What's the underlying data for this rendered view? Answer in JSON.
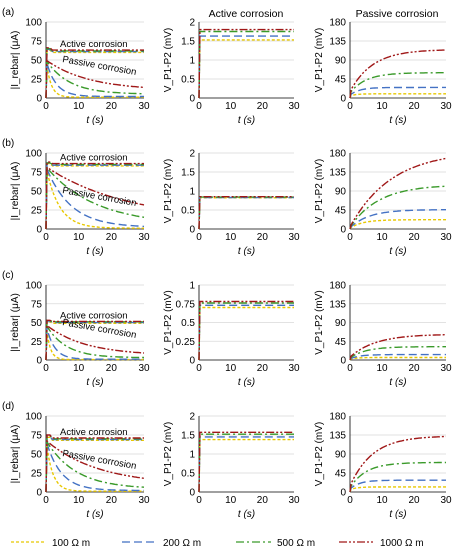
{
  "column_titles": [
    "",
    "Active corrosion",
    "Passive corrosion"
  ],
  "row_labels": [
    "(a)",
    "(b)",
    "(c)",
    "(d)"
  ],
  "axis_labels": {
    "x": "t (s)",
    "current_y": "|I_rebar| (μA)",
    "voltage_y": "V_P1-P2 (mV)"
  },
  "annotations": {
    "active": "Active corrosion",
    "passive": "Passive corrosion"
  },
  "legend": [
    {
      "label": "100 Ω m",
      "color": "#e8c800",
      "dash": "3,2"
    },
    {
      "label": "200 Ω m",
      "color": "#4472c4",
      "dash": "8,4"
    },
    {
      "label": "500 Ω m",
      "color": "#3a9a2a",
      "dash": "8,3,2,3"
    },
    {
      "label": "1000 Ω m",
      "color": "#a01818",
      "dash": "8,2,2,2,2,2"
    }
  ],
  "chart_data": [
    {
      "type": "line",
      "row": "(a)",
      "panel": "current",
      "xlim": [
        0,
        30
      ],
      "ylim": [
        0,
        100
      ],
      "xticks": [
        0,
        10,
        20,
        30
      ],
      "yticks": [
        0,
        25,
        50,
        75,
        100
      ],
      "series": [
        {
          "name": "100 Ω m",
          "kind": "passive",
          "params": {
            "peak": 50,
            "tau": 1.5,
            "final": 1
          }
        },
        {
          "name": "200 Ω m",
          "kind": "passive",
          "params": {
            "peak": 50,
            "tau": 3,
            "final": 2
          }
        },
        {
          "name": "500 Ω m",
          "kind": "passive",
          "params": {
            "peak": 50,
            "tau": 7,
            "final": 5
          }
        },
        {
          "name": "1000 Ω m",
          "kind": "passive",
          "params": {
            "peak": 50,
            "tau": 13,
            "final": 10
          }
        },
        {
          "name": "100 Ω m",
          "kind": "active",
          "params": {
            "level": 60,
            "peak": 63
          }
        },
        {
          "name": "200 Ω m",
          "kind": "active",
          "params": {
            "level": 61,
            "peak": 64
          }
        },
        {
          "name": "500 Ω m",
          "kind": "active",
          "params": {
            "level": 62,
            "peak": 65
          }
        },
        {
          "name": "1000 Ω m",
          "kind": "active",
          "params": {
            "level": 63,
            "peak": 66
          }
        }
      ]
    },
    {
      "type": "line",
      "row": "(a)",
      "panel": "active-voltage",
      "xlim": [
        0,
        30
      ],
      "ylim": [
        0,
        2
      ],
      "xticks": [
        0,
        10,
        20,
        30
      ],
      "yticks": [
        0,
        0.5,
        1,
        1.5,
        2
      ],
      "series": [
        {
          "name": "100 Ω m",
          "kind": "step",
          "params": {
            "level": 1.53
          }
        },
        {
          "name": "200 Ω m",
          "kind": "step",
          "params": {
            "level": 1.63
          }
        },
        {
          "name": "500 Ω m",
          "kind": "step",
          "params": {
            "level": 1.75
          }
        },
        {
          "name": "1000 Ω m",
          "kind": "step",
          "params": {
            "level": 1.8
          }
        }
      ]
    },
    {
      "type": "line",
      "row": "(a)",
      "panel": "passive-voltage",
      "xlim": [
        0,
        30
      ],
      "ylim": [
        0,
        180
      ],
      "xticks": [
        0,
        10,
        20,
        30
      ],
      "yticks": [
        0,
        45,
        90,
        135,
        180
      ],
      "series": [
        {
          "name": "100 Ω m",
          "kind": "rise",
          "params": {
            "v0": 5,
            "vinf": 10,
            "tau": 2
          }
        },
        {
          "name": "200 Ω m",
          "kind": "rise",
          "params": {
            "v0": 7,
            "vinf": 25,
            "tau": 3
          }
        },
        {
          "name": "500 Ω m",
          "kind": "rise",
          "params": {
            "v0": 12,
            "vinf": 60,
            "tau": 5
          }
        },
        {
          "name": "1000 Ω m",
          "kind": "rise",
          "params": {
            "v0": 15,
            "vinf": 115,
            "tau": 7
          }
        }
      ]
    },
    {
      "type": "line",
      "row": "(b)",
      "panel": "current",
      "xlim": [
        0,
        30
      ],
      "ylim": [
        0,
        100
      ],
      "xticks": [
        0,
        10,
        20,
        30
      ],
      "yticks": [
        0,
        25,
        50,
        75,
        100
      ],
      "series": [
        {
          "name": "100 Ω m",
          "kind": "passive",
          "params": {
            "peak": 82,
            "tau": 4,
            "final": 1
          }
        },
        {
          "name": "200 Ω m",
          "kind": "passive",
          "params": {
            "peak": 82,
            "tau": 7.5,
            "final": 2
          }
        },
        {
          "name": "500 Ω m",
          "kind": "passive",
          "params": {
            "peak": 82,
            "tau": 15,
            "final": 5
          }
        },
        {
          "name": "1000 Ω m",
          "kind": "passive",
          "params": {
            "peak": 82,
            "tau": 25,
            "final": 10
          }
        },
        {
          "name": "100 Ω m",
          "kind": "active",
          "params": {
            "level": 83,
            "peak": 86
          }
        },
        {
          "name": "200 Ω m",
          "kind": "active",
          "params": {
            "level": 84,
            "peak": 87
          }
        },
        {
          "name": "500 Ω m",
          "kind": "active",
          "params": {
            "level": 85,
            "peak": 87
          }
        },
        {
          "name": "1000 Ω m",
          "kind": "active",
          "params": {
            "level": 86,
            "peak": 88
          }
        }
      ]
    },
    {
      "type": "line",
      "row": "(b)",
      "panel": "active-voltage",
      "xlim": [
        0,
        30
      ],
      "ylim": [
        0,
        2
      ],
      "xticks": [
        0,
        10,
        20,
        30
      ],
      "yticks": [
        0,
        0.5,
        1,
        1.5,
        2
      ],
      "series": [
        {
          "name": "100 Ω m",
          "kind": "step",
          "params": {
            "level": 0.82
          }
        },
        {
          "name": "200 Ω m",
          "kind": "step",
          "params": {
            "level": 0.83
          }
        },
        {
          "name": "500 Ω m",
          "kind": "step",
          "params": {
            "level": 0.84
          }
        },
        {
          "name": "1000 Ω m",
          "kind": "step",
          "params": {
            "level": 0.85
          }
        }
      ]
    },
    {
      "type": "line",
      "row": "(b)",
      "panel": "passive-voltage",
      "xlim": [
        0,
        30
      ],
      "ylim": [
        0,
        180
      ],
      "xticks": [
        0,
        10,
        20,
        30
      ],
      "yticks": [
        0,
        45,
        90,
        135,
        180
      ],
      "series": [
        {
          "name": "100 Ω m",
          "kind": "rise",
          "params": {
            "v0": 2,
            "vinf": 22,
            "tau": 4
          }
        },
        {
          "name": "200 Ω m",
          "kind": "rise",
          "params": {
            "v0": 3,
            "vinf": 46,
            "tau": 6
          }
        },
        {
          "name": "500 Ω m",
          "kind": "rise",
          "params": {
            "v0": 4,
            "vinf": 105,
            "tau": 9
          }
        },
        {
          "name": "1000 Ω m",
          "kind": "rise",
          "params": {
            "v0": 5,
            "vinf": 185,
            "tau": 13
          }
        }
      ]
    },
    {
      "type": "line",
      "row": "(c)",
      "panel": "current",
      "xlim": [
        0,
        30
      ],
      "ylim": [
        0,
        100
      ],
      "xticks": [
        0,
        10,
        20,
        30
      ],
      "yticks": [
        0,
        25,
        50,
        75,
        100
      ],
      "series": [
        {
          "name": "100 Ω m",
          "kind": "passive",
          "params": {
            "peak": 47,
            "tau": 1.2,
            "final": 0.5
          }
        },
        {
          "name": "200 Ω m",
          "kind": "passive",
          "params": {
            "peak": 47,
            "tau": 2.5,
            "final": 1
          }
        },
        {
          "name": "500 Ω m",
          "kind": "passive",
          "params": {
            "peak": 47,
            "tau": 6,
            "final": 3
          }
        },
        {
          "name": "1000 Ω m",
          "kind": "passive",
          "params": {
            "peak": 47,
            "tau": 12,
            "final": 6
          }
        },
        {
          "name": "100 Ω m",
          "kind": "active",
          "params": {
            "level": 49,
            "peak": 51
          }
        },
        {
          "name": "200 Ω m",
          "kind": "active",
          "params": {
            "level": 50,
            "peak": 52
          }
        },
        {
          "name": "500 Ω m",
          "kind": "active",
          "params": {
            "level": 51,
            "peak": 53
          }
        },
        {
          "name": "1000 Ω m",
          "kind": "active",
          "params": {
            "level": 51.5,
            "peak": 53
          }
        }
      ]
    },
    {
      "type": "line",
      "row": "(c)",
      "panel": "active-voltage",
      "xlim": [
        0,
        30
      ],
      "ylim": [
        0,
        1
      ],
      "xticks": [
        0,
        10,
        20,
        30
      ],
      "yticks": [
        0,
        0.25,
        0.5,
        0.75,
        1
      ],
      "series": [
        {
          "name": "100 Ω m",
          "kind": "step",
          "params": {
            "level": 0.7
          }
        },
        {
          "name": "200 Ω m",
          "kind": "step",
          "params": {
            "level": 0.73
          }
        },
        {
          "name": "500 Ω m",
          "kind": "step",
          "params": {
            "level": 0.76
          }
        },
        {
          "name": "1000 Ω m",
          "kind": "step",
          "params": {
            "level": 0.78
          }
        }
      ]
    },
    {
      "type": "line",
      "row": "(c)",
      "panel": "passive-voltage",
      "xlim": [
        0,
        30
      ],
      "ylim": [
        0,
        180
      ],
      "xticks": [
        0,
        10,
        20,
        30
      ],
      "yticks": [
        0,
        45,
        90,
        135,
        180
      ],
      "series": [
        {
          "name": "100 Ω m",
          "kind": "rise",
          "params": {
            "v0": 2,
            "vinf": 6,
            "tau": 2
          }
        },
        {
          "name": "200 Ω m",
          "kind": "rise",
          "params": {
            "v0": 3,
            "vinf": 13,
            "tau": 3
          }
        },
        {
          "name": "500 Ω m",
          "kind": "rise",
          "params": {
            "v0": 5,
            "vinf": 32,
            "tau": 5
          }
        },
        {
          "name": "1000 Ω m",
          "kind": "rise",
          "params": {
            "v0": 7,
            "vinf": 62,
            "tau": 8
          }
        }
      ]
    },
    {
      "type": "line",
      "row": "(d)",
      "panel": "current",
      "xlim": [
        0,
        30
      ],
      "ylim": [
        0,
        100
      ],
      "xticks": [
        0,
        10,
        20,
        30
      ],
      "yticks": [
        0,
        25,
        50,
        75,
        100
      ],
      "series": [
        {
          "name": "100 Ω m",
          "kind": "passive",
          "params": {
            "peak": 68,
            "tau": 2,
            "final": 1
          }
        },
        {
          "name": "200 Ω m",
          "kind": "passive",
          "params": {
            "peak": 68,
            "tau": 4.5,
            "final": 2
          }
        },
        {
          "name": "500 Ω m",
          "kind": "passive",
          "params": {
            "peak": 68,
            "tau": 9,
            "final": 4
          }
        },
        {
          "name": "1000 Ω m",
          "kind": "passive",
          "params": {
            "peak": 68,
            "tau": 16,
            "final": 9
          }
        },
        {
          "name": "100 Ω m",
          "kind": "active",
          "params": {
            "level": 68,
            "peak": 72
          }
        },
        {
          "name": "200 Ω m",
          "kind": "active",
          "params": {
            "level": 69,
            "peak": 73
          }
        },
        {
          "name": "500 Ω m",
          "kind": "active",
          "params": {
            "level": 70,
            "peak": 74
          }
        },
        {
          "name": "1000 Ω m",
          "kind": "active",
          "params": {
            "level": 71,
            "peak": 75
          }
        }
      ]
    },
    {
      "type": "line",
      "row": "(d)",
      "panel": "active-voltage",
      "xlim": [
        0,
        30
      ],
      "ylim": [
        0,
        2
      ],
      "xticks": [
        0,
        10,
        20,
        30
      ],
      "yticks": [
        0,
        0.5,
        1,
        1.5,
        2
      ],
      "series": [
        {
          "name": "100 Ω m",
          "kind": "step",
          "params": {
            "level": 1.38
          }
        },
        {
          "name": "200 Ω m",
          "kind": "step",
          "params": {
            "level": 1.45
          }
        },
        {
          "name": "500 Ω m",
          "kind": "step",
          "params": {
            "level": 1.52
          }
        },
        {
          "name": "1000 Ω m",
          "kind": "step",
          "params": {
            "level": 1.57
          }
        }
      ]
    },
    {
      "type": "line",
      "row": "(d)",
      "panel": "passive-voltage",
      "xlim": [
        0,
        30
      ],
      "ylim": [
        0,
        180
      ],
      "xticks": [
        0,
        10,
        20,
        30
      ],
      "yticks": [
        0,
        45,
        90,
        135,
        180
      ],
      "series": [
        {
          "name": "100 Ω m",
          "kind": "rise",
          "params": {
            "v0": 5,
            "vinf": 12,
            "tau": 2
          }
        },
        {
          "name": "200 Ω m",
          "kind": "rise",
          "params": {
            "v0": 7,
            "vinf": 28,
            "tau": 3
          }
        },
        {
          "name": "500 Ω m",
          "kind": "rise",
          "params": {
            "v0": 10,
            "vinf": 70,
            "tau": 5
          }
        },
        {
          "name": "1000 Ω m",
          "kind": "rise",
          "params": {
            "v0": 14,
            "vinf": 133,
            "tau": 7
          }
        }
      ]
    }
  ]
}
